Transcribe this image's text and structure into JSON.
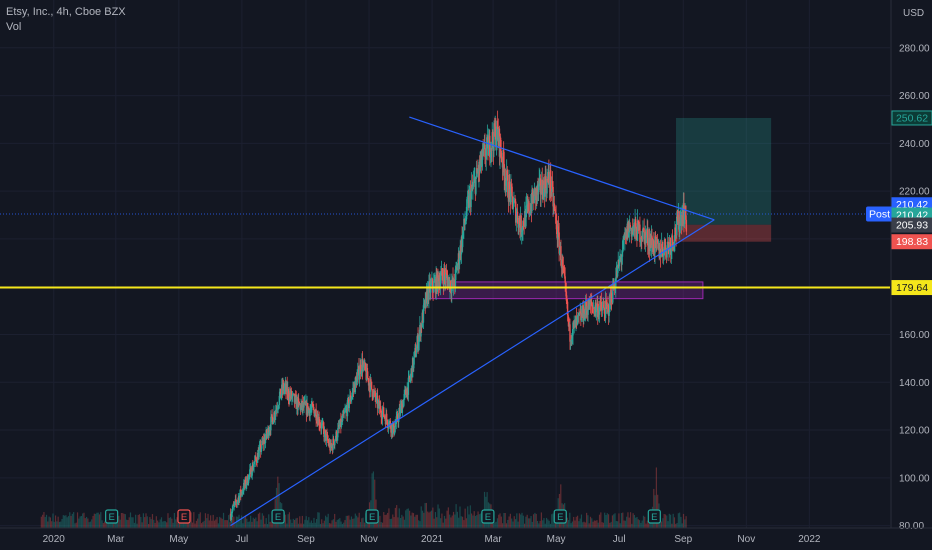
{
  "header": {
    "symbol_line": "Etsy, Inc., 4h, Cboe BZX",
    "indicator": "Vol",
    "currency": "USD"
  },
  "chart_data": {
    "type": "candlestick",
    "y_axis": {
      "ticks": [
        80,
        100,
        120,
        140,
        160,
        180,
        200,
        220,
        240,
        260,
        280
      ],
      "range": [
        79,
        300
      ]
    },
    "x_axis": {
      "labels": [
        "2020",
        "Mar",
        "May",
        "Jul",
        "Sep",
        "Nov",
        "2021",
        "Mar",
        "May",
        "Jul",
        "Sep",
        "Nov",
        "2022"
      ],
      "range": [
        "2019-11-10",
        "2022-03-20"
      ]
    },
    "price_path": [
      [
        "2020-06-20",
        85
      ],
      [
        "2020-07-05",
        98
      ],
      [
        "2020-07-25",
        118
      ],
      [
        "2020-08-10",
        138
      ],
      [
        "2020-08-25",
        130
      ],
      [
        "2020-09-10",
        128
      ],
      [
        "2020-09-25",
        112
      ],
      [
        "2020-10-10",
        128
      ],
      [
        "2020-10-25",
        148
      ],
      [
        "2020-11-10",
        130
      ],
      [
        "2020-11-25",
        120
      ],
      [
        "2020-12-10",
        140
      ],
      [
        "2020-12-28",
        178
      ],
      [
        "2021-01-12",
        185
      ],
      [
        "2021-01-22",
        180
      ],
      [
        "2021-02-05",
        215
      ],
      [
        "2021-02-20",
        235
      ],
      [
        "2021-03-05",
        245
      ],
      [
        "2021-03-15",
        222
      ],
      [
        "2021-03-28",
        205
      ],
      [
        "2021-04-10",
        218
      ],
      [
        "2021-04-25",
        225
      ],
      [
        "2021-05-08",
        185
      ],
      [
        "2021-05-14",
        160
      ],
      [
        "2021-06-01",
        172
      ],
      [
        "2021-06-20",
        170
      ],
      [
        "2021-07-10",
        205
      ],
      [
        "2021-07-25",
        202
      ],
      [
        "2021-08-08",
        195
      ],
      [
        "2021-08-20",
        198
      ],
      [
        "2021-09-01",
        212
      ],
      [
        "2021-09-04",
        207
      ]
    ],
    "volume_spike_dates": [
      "2020-08-05",
      "2020-11-05",
      "2021-02-24",
      "2021-05-06",
      "2021-08-05"
    ],
    "earnings_markers": [
      {
        "date": "2020-02-26",
        "label": "E",
        "color": "#26a69a"
      },
      {
        "date": "2020-05-06",
        "label": "E",
        "color": "#ef5350"
      },
      {
        "date": "2020-08-05",
        "label": "E",
        "color": "#26a69a"
      },
      {
        "date": "2020-11-04",
        "label": "E",
        "color": "#26a69a"
      },
      {
        "date": "2021-02-24",
        "label": "E",
        "color": "#26a69a"
      },
      {
        "date": "2021-05-05",
        "label": "E",
        "color": "#26a69a"
      },
      {
        "date": "2021-08-04",
        "label": "E",
        "color": "#26a69a"
      }
    ],
    "drawings": {
      "triangle_upper": [
        [
          "2020-12-10",
          251
        ],
        [
          "2021-10-01",
          208
        ]
      ],
      "triangle_lower": [
        [
          "2020-06-20",
          80
        ],
        [
          "2021-10-01",
          208
        ]
      ],
      "support_zone": {
        "from": "2020-12-28",
        "to": "2021-09-20",
        "low": 175,
        "high": 182
      },
      "horizontal_line": {
        "price": 179.64,
        "color": "#f5e71b"
      },
      "position": {
        "from": "2021-08-25",
        "to": "2021-11-25",
        "entry": 205.93,
        "target": 250.62,
        "stop": 198.83
      }
    },
    "price_labels": [
      {
        "value": "250.62",
        "price": 250.62,
        "bg": "#0c3b36",
        "fg": "#26a69a",
        "border": "#26a69a"
      },
      {
        "value": "210.42",
        "price": 214.3,
        "bg": "#2962ff",
        "fg": "#ffffff",
        "border": "#2962ff"
      },
      {
        "value": "210.42",
        "price": 210.0,
        "bg": "#26a69a",
        "fg": "#ffffff",
        "border": "#26a69a"
      },
      {
        "value": "205.93",
        "price": 205.8,
        "bg": "#3a3e4a",
        "fg": "#ffffff",
        "border": "#3a3e4a"
      },
      {
        "value": "198.83",
        "price": 198.83,
        "bg": "#ef5350",
        "fg": "#ffffff",
        "border": "#ef5350"
      },
      {
        "value": "179.64",
        "price": 179.64,
        "bg": "#f5e71b",
        "fg": "#131722",
        "border": "#f5e71b"
      }
    ],
    "post_label": "Post",
    "post_price": 210.42
  }
}
